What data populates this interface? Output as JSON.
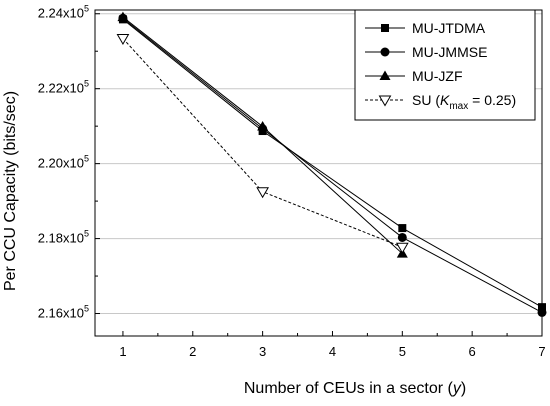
{
  "chart_data": {
    "type": "line",
    "xlabel": "Number of CEUs in a sector (",
    "xlabel_var": "y",
    "xlabel_end": ")",
    "ylabel": "Per CCU Capacity (bits/sec)",
    "xlim": [
      0.6,
      7.0
    ],
    "ylim": [
      215400,
      224100
    ],
    "x_ticks": [
      1,
      2,
      3,
      4,
      5,
      6,
      7
    ],
    "y_ticks": [
      {
        "value": 216000,
        "mantissa": "2.16x10",
        "exp": "5"
      },
      {
        "value": 218000,
        "mantissa": "2.18x10",
        "exp": "5"
      },
      {
        "value": 220000,
        "mantissa": "2.20x10",
        "exp": "5"
      },
      {
        "value": 222000,
        "mantissa": "2.22x10",
        "exp": "5"
      },
      {
        "value": 224000,
        "mantissa": "2.24x10",
        "exp": "5"
      }
    ],
    "grid": "horizontal",
    "legend_position": "top-right",
    "series": [
      {
        "name": "MU-JTDMA",
        "marker": "square",
        "line": "solid",
        "color": "#000000",
        "x": [
          1,
          3,
          5,
          7
        ],
        "y": [
          223850,
          220870,
          218280,
          216170
        ]
      },
      {
        "name": "MU-JMMSE",
        "marker": "circle",
        "line": "solid",
        "color": "#000000",
        "x": [
          1,
          3,
          5,
          7
        ],
        "y": [
          223880,
          220930,
          218030,
          216030
        ]
      },
      {
        "name": "MU-JZF",
        "marker": "triangle",
        "line": "solid",
        "color": "#000000",
        "x": [
          1,
          3,
          5
        ],
        "y": [
          223910,
          220990,
          217600
        ]
      },
      {
        "name": "SU (K",
        "name_sub": "max",
        "name_end": " = 0.25)",
        "marker": "triangle-down-open",
        "line": "dashed",
        "color": "#000000",
        "x": [
          1,
          3,
          5
        ],
        "y": [
          223340,
          219250,
          217770
        ]
      }
    ]
  }
}
